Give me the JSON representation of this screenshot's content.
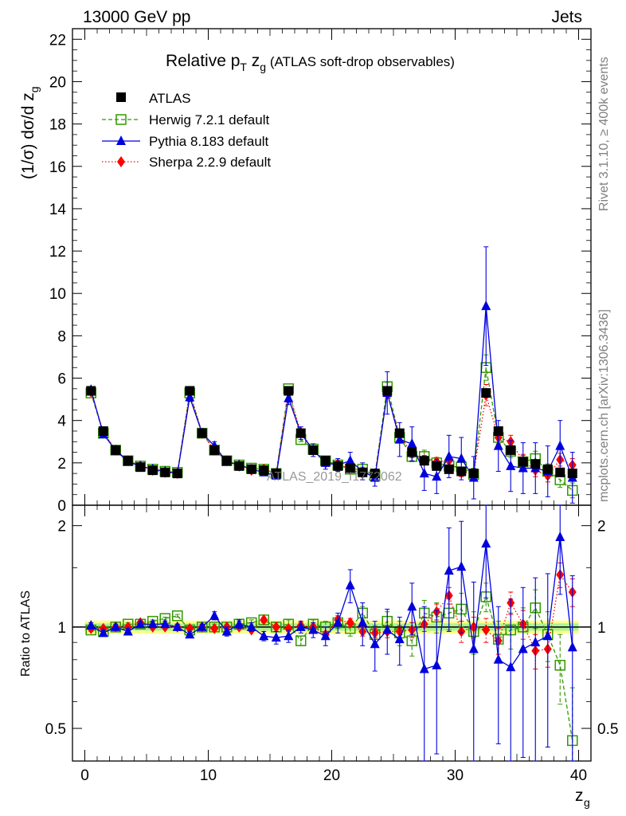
{
  "header": {
    "left": "13000 GeV pp",
    "right": "Jets",
    "rivet": "Rivet 3.1.10, ≥ 400k events",
    "mcplots": "mcplots.cern.ch [arXiv:1306.3436]",
    "watermark": "ATLAS_2019_I1772062"
  },
  "chart_data": {
    "type": "line",
    "title": "Relative pT zg (ATLAS soft-drop observables)",
    "title_parts": {
      "main": "Relative p",
      "sub_T": "T",
      "mid": " z",
      "sub_g": "g",
      "tail": " (ATLAS soft-drop observables)"
    },
    "xlabel": "z_g",
    "ylabel": "(1/σ) dσ/d z_g",
    "ylabel_parts": {
      "main": "(1/σ) dσ/d z",
      "sub": "g"
    },
    "ratio_ylabel": "Ratio to ATLAS",
    "xlim": [
      -1,
      41
    ],
    "ylim": [
      0,
      22.5
    ],
    "ratio_ylim": [
      0.4,
      2.3
    ],
    "x_ticks": [
      0,
      10,
      20,
      30,
      40
    ],
    "y_ticks": [
      0,
      2,
      4,
      6,
      8,
      10,
      12,
      14,
      16,
      18,
      20,
      22
    ],
    "ratio_ticks": [
      0.5,
      1,
      2
    ],
    "x": [
      0.5,
      1.5,
      2.5,
      3.5,
      4.5,
      5.5,
      6.5,
      7.5,
      8.5,
      9.5,
      10.5,
      11.5,
      12.5,
      13.5,
      14.5,
      15.5,
      16.5,
      17.5,
      18.5,
      19.5,
      20.5,
      21.5,
      22.5,
      23.5,
      24.5,
      25.5,
      26.5,
      27.5,
      28.5,
      29.5,
      30.5,
      31.5,
      32.5,
      33.5,
      34.5,
      35.5,
      36.5,
      37.5,
      38.5,
      39.5
    ],
    "series": [
      {
        "name": "ATLAS",
        "style": "data",
        "color": "#000000",
        "values": [
          5.4,
          3.5,
          2.6,
          2.1,
          1.8,
          1.65,
          1.55,
          1.5,
          5.4,
          3.4,
          2.6,
          2.1,
          1.85,
          1.7,
          1.65,
          1.5,
          5.4,
          3.4,
          2.6,
          2.1,
          1.85,
          1.75,
          1.55,
          1.5,
          5.4,
          3.4,
          2.5,
          2.1,
          1.85,
          1.7,
          1.6,
          1.5,
          5.3,
          3.5,
          2.6,
          2.05,
          1.95,
          1.7,
          1.55,
          1.5
        ]
      },
      {
        "name": "Herwig 7.2.1 default",
        "style": "herwig",
        "color": "#339900",
        "values": [
          5.3,
          3.4,
          2.6,
          2.1,
          1.85,
          1.7,
          1.6,
          1.55,
          5.3,
          3.4,
          2.6,
          2.1,
          1.9,
          1.75,
          1.7,
          1.5,
          5.5,
          3.1,
          2.65,
          2.1,
          1.9,
          1.7,
          1.7,
          1.4,
          5.6,
          3.2,
          2.3,
          2.3,
          2.0,
          1.85,
          1.8,
          1.45,
          6.5,
          3.2,
          2.55,
          2.05,
          2.2,
          1.6,
          1.2,
          0.7
        ],
        "err": [
          0.05,
          0.05,
          0.04,
          0.04,
          0.04,
          0.04,
          0.04,
          0.04,
          0.05,
          0.05,
          0.05,
          0.04,
          0.04,
          0.04,
          0.04,
          0.04,
          0.1,
          0.1,
          0.1,
          0.1,
          0.1,
          0.1,
          0.1,
          0.1,
          0.2,
          0.25,
          0.25,
          0.3,
          0.25,
          0.3,
          0.3,
          0.3,
          0.6,
          0.35,
          0.3,
          0.3,
          0.35,
          0.35,
          0.35,
          0.35
        ]
      },
      {
        "name": "Pythia 8.183 default",
        "style": "pythia",
        "color": "#0000dd",
        "values": [
          5.45,
          3.35,
          2.6,
          2.05,
          1.85,
          1.7,
          1.6,
          1.5,
          5.1,
          3.4,
          2.8,
          2.05,
          1.9,
          1.7,
          1.55,
          1.4,
          5.05,
          3.4,
          2.6,
          2.0,
          1.9,
          2.1,
          1.6,
          1.3,
          5.3,
          3.1,
          2.9,
          1.5,
          1.35,
          2.3,
          2.2,
          1.3,
          9.4,
          2.8,
          1.85,
          1.75,
          1.75,
          1.6,
          2.8,
          1.3
        ],
        "err": [
          0.1,
          0.1,
          0.1,
          0.1,
          0.1,
          0.1,
          0.1,
          0.1,
          0.2,
          0.2,
          0.2,
          0.15,
          0.15,
          0.15,
          0.15,
          0.15,
          0.3,
          0.3,
          0.3,
          0.3,
          0.3,
          0.4,
          0.4,
          0.4,
          1.0,
          0.8,
          0.8,
          0.8,
          0.8,
          1.0,
          1.0,
          1.0,
          2.8,
          1.2,
          1.2,
          1.2,
          1.2,
          1.2,
          1.2,
          1.2
        ]
      },
      {
        "name": "Sherpa 2.2.9 default",
        "style": "sherpa",
        "color": "#ff0000",
        "values": [
          5.35,
          3.45,
          2.6,
          2.1,
          1.85,
          1.65,
          1.55,
          1.5,
          5.35,
          3.4,
          2.6,
          2.1,
          1.85,
          1.65,
          1.7,
          1.5,
          5.35,
          3.45,
          2.6,
          2.0,
          1.95,
          1.7,
          1.5,
          1.45,
          5.25,
          3.3,
          2.45,
          2.15,
          2.05,
          2.1,
          1.55,
          1.5,
          5.2,
          3.2,
          3.0,
          2.1,
          1.65,
          1.4,
          2.15,
          1.9
        ],
        "err": [
          0.05,
          0.05,
          0.05,
          0.05,
          0.05,
          0.05,
          0.05,
          0.05,
          0.05,
          0.05,
          0.05,
          0.05,
          0.05,
          0.05,
          0.05,
          0.05,
          0.1,
          0.1,
          0.1,
          0.1,
          0.1,
          0.1,
          0.1,
          0.1,
          0.2,
          0.2,
          0.2,
          0.2,
          0.2,
          0.2,
          0.2,
          0.2,
          0.5,
          0.3,
          0.3,
          0.3,
          0.3,
          0.3,
          0.3,
          0.3
        ]
      }
    ],
    "ratio": {
      "herwig": [
        0.98,
        0.97,
        1.0,
        1.02,
        1.02,
        1.04,
        1.06,
        1.08,
        0.98,
        1.0,
        1.0,
        1.0,
        1.02,
        1.03,
        1.05,
        1.0,
        1.02,
        0.91,
        1.02,
        1.0,
        1.03,
        0.99,
        1.1,
        0.95,
        1.04,
        0.96,
        0.91,
        1.1,
        1.07,
        1.1,
        1.13,
        0.97,
        1.23,
        0.92,
        0.98,
        1.0,
        1.14,
        0.95,
        0.77,
        0.46
      ],
      "herwig_err": [
        0.01,
        0.01,
        0.01,
        0.01,
        0.01,
        0.01,
        0.01,
        0.01,
        0.02,
        0.02,
        0.02,
        0.02,
        0.02,
        0.02,
        0.02,
        0.03,
        0.03,
        0.03,
        0.03,
        0.04,
        0.04,
        0.05,
        0.05,
        0.06,
        0.07,
        0.08,
        0.09,
        0.1,
        0.11,
        0.12,
        0.13,
        0.14,
        0.12,
        0.12,
        0.12,
        0.14,
        0.15,
        0.16,
        0.18,
        0.2
      ],
      "pythia": [
        1.01,
        0.96,
        1.0,
        0.97,
        1.02,
        1.02,
        1.02,
        1.0,
        0.95,
        1.0,
        1.08,
        0.97,
        1.02,
        1.0,
        0.94,
        0.93,
        0.94,
        1.0,
        0.98,
        0.94,
        1.03,
        1.33,
        1.03,
        0.89,
        0.98,
        0.92,
        1.15,
        0.75,
        0.77,
        1.47,
        1.51,
        0.86,
        1.77,
        0.8,
        0.76,
        0.86,
        0.9,
        0.94,
        1.85,
        0.87
      ],
      "pythia_err": [
        0.02,
        0.02,
        0.02,
        0.02,
        0.02,
        0.02,
        0.02,
        0.02,
        0.02,
        0.02,
        0.03,
        0.03,
        0.03,
        0.03,
        0.03,
        0.04,
        0.04,
        0.04,
        0.05,
        0.06,
        0.07,
        0.15,
        0.15,
        0.15,
        0.15,
        0.15,
        0.2,
        0.4,
        0.35,
        0.5,
        0.55,
        0.5,
        0.55,
        0.35,
        0.45,
        0.45,
        0.5,
        0.5,
        0.6,
        0.55
      ],
      "sherpa": [
        0.99,
        0.99,
        1.0,
        1.0,
        1.03,
        1.0,
        1.0,
        1.0,
        0.99,
        1.0,
        0.99,
        1.0,
        1.0,
        0.98,
        1.05,
        1.0,
        0.99,
        1.01,
        1.0,
        0.95,
        1.05,
        1.03,
        0.97,
        0.96,
        0.97,
        0.97,
        0.98,
        1.02,
        1.11,
        1.24,
        0.97,
        1.0,
        0.98,
        0.91,
        1.18,
        1.02,
        0.85,
        0.86,
        1.43,
        1.27
      ],
      "sherpa_err": [
        0.01,
        0.01,
        0.01,
        0.01,
        0.01,
        0.01,
        0.01,
        0.01,
        0.01,
        0.01,
        0.01,
        0.01,
        0.01,
        0.01,
        0.01,
        0.01,
        0.02,
        0.02,
        0.02,
        0.02,
        0.03,
        0.03,
        0.03,
        0.03,
        0.04,
        0.04,
        0.05,
        0.05,
        0.06,
        0.07,
        0.07,
        0.07,
        0.08,
        0.08,
        0.09,
        0.1,
        0.1,
        0.1,
        0.12,
        0.12
      ]
    }
  }
}
